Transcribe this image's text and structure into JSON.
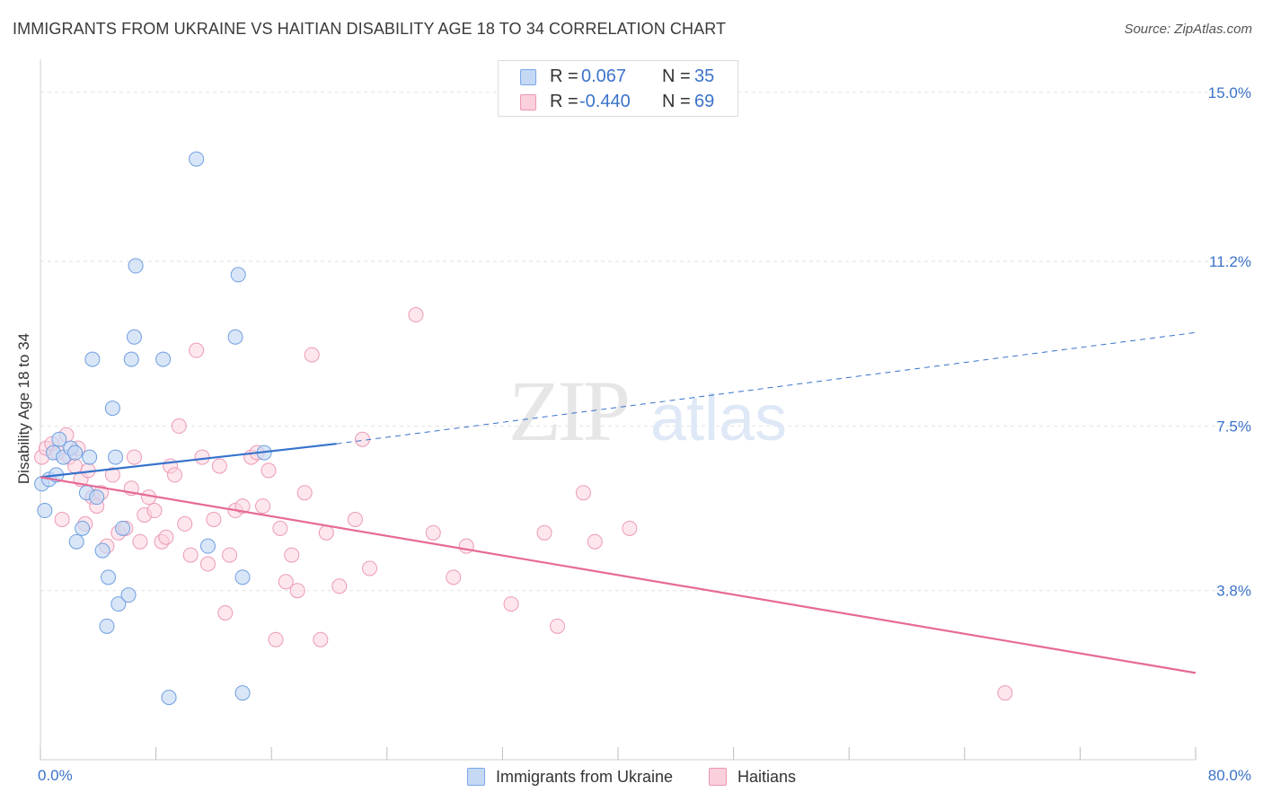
{
  "header": {
    "title": "IMMIGRANTS FROM UKRAINE VS HAITIAN DISABILITY AGE 18 TO 34 CORRELATION CHART",
    "source": "Source: ZipAtlas.com"
  },
  "stats": {
    "r_label": "R =",
    "n_label": "N =",
    "ukraine": {
      "r": "0.067",
      "n": "35"
    },
    "haitians": {
      "r": "-0.440",
      "n": "69"
    }
  },
  "watermark": {
    "zip": "ZIP",
    "atlas": "atlas"
  },
  "legend": {
    "ukraine": "Immigrants from Ukraine",
    "haitians": "Haitians"
  },
  "colors": {
    "blue_fill": "#c5d9f5",
    "blue_stroke": "#6f9fe0",
    "blue_line": "#3672cc",
    "pink_fill": "#fbd3df",
    "pink_stroke": "#ec9ab6",
    "pink_line": "#e66a95",
    "tick_label": "#3b73c9"
  },
  "chart_data": {
    "type": "scatter",
    "title": "IMMIGRANTS FROM UKRAINE VS HAITIAN DISABILITY AGE 18 TO 34 CORRELATION CHART",
    "xlabel": "",
    "ylabel": "Disability Age 18 to 34",
    "xlim": [
      0,
      80
    ],
    "ylim": [
      0,
      15.5
    ],
    "x_tick_labels": [
      "0.0%",
      "80.0%"
    ],
    "y_ticks": [
      3.8,
      7.5,
      11.2,
      15.0
    ],
    "y_tick_labels": [
      "3.8%",
      "7.5%",
      "11.2%",
      "15.0%"
    ],
    "grid": "horizontal dashed",
    "series": [
      {
        "name": "Immigrants from Ukraine",
        "color": "blue",
        "points": [
          [
            0.1,
            6.2
          ],
          [
            0.3,
            5.6
          ],
          [
            0.6,
            6.3
          ],
          [
            0.9,
            6.9
          ],
          [
            1.1,
            6.4
          ],
          [
            1.3,
            7.2
          ],
          [
            1.6,
            6.8
          ],
          [
            2.1,
            7.0
          ],
          [
            2.4,
            6.9
          ],
          [
            2.5,
            4.9
          ],
          [
            2.9,
            5.2
          ],
          [
            3.2,
            6.0
          ],
          [
            3.4,
            6.8
          ],
          [
            3.6,
            9.0
          ],
          [
            3.9,
            5.9
          ],
          [
            4.3,
            4.7
          ],
          [
            4.6,
            3.0
          ],
          [
            4.7,
            4.1
          ],
          [
            5.0,
            7.9
          ],
          [
            5.2,
            6.8
          ],
          [
            5.4,
            3.5
          ],
          [
            5.7,
            5.2
          ],
          [
            6.1,
            3.7
          ],
          [
            6.3,
            9.0
          ],
          [
            6.5,
            9.5
          ],
          [
            6.6,
            11.1
          ],
          [
            8.5,
            9.0
          ],
          [
            8.9,
            1.4
          ],
          [
            10.8,
            13.5
          ],
          [
            11.6,
            4.8
          ],
          [
            13.5,
            9.5
          ],
          [
            13.7,
            10.9
          ],
          [
            14.0,
            4.1
          ],
          [
            14.0,
            1.5
          ],
          [
            15.5,
            6.9
          ]
        ]
      },
      {
        "name": "Haitians",
        "color": "pink",
        "points": [
          [
            0.1,
            6.8
          ],
          [
            0.4,
            7.0
          ],
          [
            0.8,
            7.1
          ],
          [
            1.2,
            6.9
          ],
          [
            1.5,
            5.4
          ],
          [
            1.8,
            7.3
          ],
          [
            2.0,
            6.8
          ],
          [
            2.4,
            6.6
          ],
          [
            2.8,
            6.3
          ],
          [
            3.1,
            5.3
          ],
          [
            3.3,
            6.5
          ],
          [
            3.6,
            5.9
          ],
          [
            3.9,
            5.7
          ],
          [
            4.2,
            6.0
          ],
          [
            4.6,
            4.8
          ],
          [
            5.0,
            6.4
          ],
          [
            5.4,
            5.1
          ],
          [
            5.9,
            5.2
          ],
          [
            6.3,
            6.1
          ],
          [
            6.5,
            6.8
          ],
          [
            6.9,
            4.9
          ],
          [
            7.2,
            5.5
          ],
          [
            7.5,
            5.9
          ],
          [
            7.9,
            5.6
          ],
          [
            8.4,
            4.9
          ],
          [
            8.7,
            5.0
          ],
          [
            9.0,
            6.6
          ],
          [
            9.3,
            6.4
          ],
          [
            9.6,
            7.5
          ],
          [
            10.0,
            5.3
          ],
          [
            10.4,
            4.6
          ],
          [
            10.8,
            9.2
          ],
          [
            11.2,
            6.8
          ],
          [
            11.6,
            4.4
          ],
          [
            12.0,
            5.4
          ],
          [
            12.4,
            6.6
          ],
          [
            12.8,
            3.3
          ],
          [
            13.1,
            4.6
          ],
          [
            13.5,
            5.6
          ],
          [
            14.0,
            5.7
          ],
          [
            14.6,
            6.8
          ],
          [
            15.0,
            6.9
          ],
          [
            15.4,
            5.7
          ],
          [
            15.8,
            6.5
          ],
          [
            16.3,
            2.7
          ],
          [
            16.6,
            5.2
          ],
          [
            17.0,
            4.0
          ],
          [
            17.4,
            4.6
          ],
          [
            17.8,
            3.8
          ],
          [
            18.3,
            6.0
          ],
          [
            18.8,
            9.1
          ],
          [
            19.4,
            2.7
          ],
          [
            19.8,
            5.1
          ],
          [
            20.7,
            3.9
          ],
          [
            21.8,
            5.4
          ],
          [
            22.3,
            7.2
          ],
          [
            22.8,
            4.3
          ],
          [
            26.0,
            10.0
          ],
          [
            27.2,
            5.1
          ],
          [
            28.6,
            4.1
          ],
          [
            29.5,
            4.8
          ],
          [
            32.6,
            3.5
          ],
          [
            34.9,
            5.1
          ],
          [
            35.8,
            3.0
          ],
          [
            37.6,
            6.0
          ],
          [
            38.4,
            4.9
          ],
          [
            40.8,
            5.2
          ],
          [
            66.8,
            1.5
          ],
          [
            2.6,
            7.0
          ]
        ]
      }
    ],
    "trend_lines": [
      {
        "series": "Immigrants from Ukraine",
        "x": [
          0,
          20.5
        ],
        "y": [
          6.35,
          7.1
        ],
        "dashed_extension_to_x": 80,
        "y_at_80": 9.6
      },
      {
        "series": "Haitians",
        "x": [
          0,
          80
        ],
        "y": [
          6.35,
          1.95
        ]
      }
    ]
  }
}
